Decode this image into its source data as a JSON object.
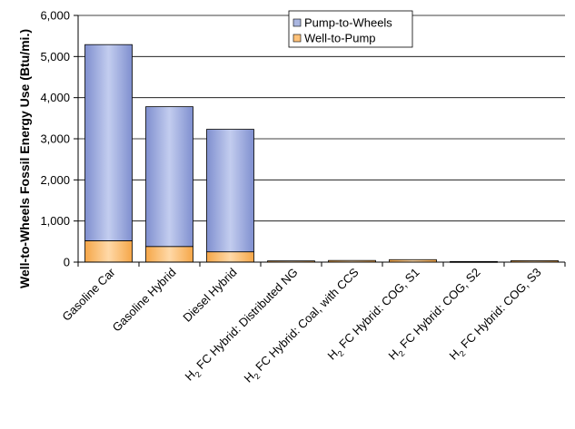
{
  "chart_data": {
    "type": "bar",
    "stacked": true,
    "categories": [
      {
        "pre": "",
        "sub": "",
        "post": "Gasoline Car"
      },
      {
        "pre": "",
        "sub": "",
        "post": "Gasoline Hybrid"
      },
      {
        "pre": "",
        "sub": "",
        "post": "Diesel Hybrid"
      },
      {
        "pre": "H",
        "sub": "2",
        "post": " FC Hybrid: Distributed NG"
      },
      {
        "pre": "H",
        "sub": "2",
        "post": " FC Hybrid: Coal, with CCS"
      },
      {
        "pre": "H",
        "sub": "2",
        "post": " FC Hybrid: COG, S1"
      },
      {
        "pre": "H",
        "sub": "2",
        "post": " FC Hybrid: COG, S2"
      },
      {
        "pre": "H",
        "sub": "2",
        "post": " FC Hybrid: COG, S3"
      }
    ],
    "series": [
      {
        "name": "Well-to-Pump",
        "color": "#ffc27a",
        "values": [
          520,
          380,
          250,
          30,
          40,
          60,
          15,
          35
        ]
      },
      {
        "name": "Pump-to-Wheels",
        "color": "#aab6e0",
        "values": [
          4770,
          3400,
          2980,
          0,
          0,
          0,
          0,
          0
        ]
      }
    ],
    "legend_order": [
      "Pump-to-Wheels",
      "Well-to-Pump"
    ],
    "ylabel": "Well-to-Wheels Fossil Energy Use (Btu/mi.)",
    "ylim": [
      0,
      6000
    ],
    "yticks": [
      "0",
      "1,000",
      "2,000",
      "3,000",
      "4,000",
      "5,000",
      "6,000"
    ],
    "grid": true,
    "legend_position": "top-right"
  }
}
